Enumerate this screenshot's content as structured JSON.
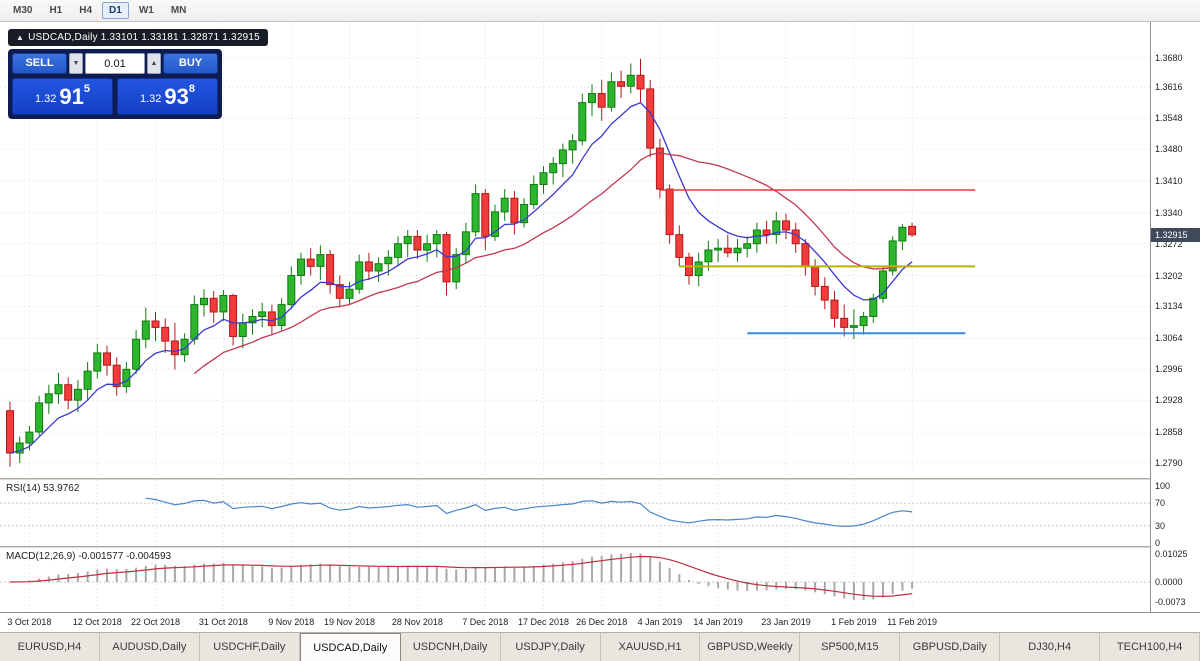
{
  "colors": {
    "up": "#2db52d",
    "up_stroke": "#0e7d0e",
    "down": "#f23b3b",
    "down_stroke": "#b21a1a",
    "ma_fast": "#3a3ad0",
    "ma_slow": "#c23850",
    "rsi_line": "#4a86c8",
    "macd_hist": "#a8a8a8",
    "macd_signal": "#c03040",
    "hline_red": "#e23b3b",
    "hline_yellow": "#b8b400",
    "hline_blue": "#3b8ae2",
    "grid": "#dcdcdc"
  },
  "toolbar": {
    "timeframes": [
      {
        "label": "M30",
        "active": false
      },
      {
        "label": "H1",
        "active": false
      },
      {
        "label": "H4",
        "active": false
      },
      {
        "label": "D1",
        "active": true
      },
      {
        "label": "W1",
        "active": false
      },
      {
        "label": "MN",
        "active": false
      }
    ]
  },
  "ohlc_label": {
    "arrow": "▲",
    "text": "USDCAD,Daily 1.33101 1.33181 1.32871 1.32915"
  },
  "trade_panel": {
    "sell_label": "SELL",
    "buy_label": "BUY",
    "lot_value": "0.01",
    "lot_down_icon": "▼",
    "lot_up_icon": "▲",
    "sell_price": {
      "prefix": "1.32",
      "big": "91",
      "sup": "5"
    },
    "buy_price": {
      "prefix": "1.32",
      "big": "93",
      "sup": "8"
    }
  },
  "price_axis": {
    "labels": [
      "1.3680",
      "1.3616",
      "1.3548",
      "1.3480",
      "1.3410",
      "1.3340",
      "1.3272",
      "1.3202",
      "1.3134",
      "1.3064",
      "1.2996",
      "1.2928",
      "1.2858",
      "1.2790"
    ],
    "current_price": "1.32915"
  },
  "rsi_panel": {
    "title": "RSI(14) 53.9762",
    "period": 14,
    "scale_labels": [
      {
        "text": "100",
        "value": 100
      },
      {
        "text": "70",
        "value": 70
      },
      {
        "text": "30",
        "value": 30
      },
      {
        "text": "0",
        "value": 0
      }
    ]
  },
  "macd_panel": {
    "title": "MACD(12,26,9) -0.001577 -0.004593",
    "fast": 12,
    "slow": 26,
    "signal": 9,
    "scale_labels": [
      {
        "text": "0.01025",
        "value": 0.01025
      },
      {
        "text": "0.0000",
        "value": 0
      },
      {
        "text": "-0.0073",
        "value": -0.0073
      }
    ]
  },
  "date_axis": {
    "ticks": [
      {
        "label": "3 Oct 2018",
        "i": 2
      },
      {
        "label": "12 Oct 2018",
        "i": 9
      },
      {
        "label": "22 Oct 2018",
        "i": 15
      },
      {
        "label": "31 Oct 2018",
        "i": 22
      },
      {
        "label": "9 Nov 2018",
        "i": 29
      },
      {
        "label": "19 Nov 2018",
        "i": 35
      },
      {
        "label": "28 Nov 2018",
        "i": 42
      },
      {
        "label": "7 Dec 2018",
        "i": 49
      },
      {
        "label": "17 Dec 2018",
        "i": 55
      },
      {
        "label": "26 Dec 2018",
        "i": 61
      },
      {
        "label": "4 Jan 2019",
        "i": 67
      },
      {
        "label": "14 Jan 2019",
        "i": 73
      },
      {
        "label": "23 Jan 2019",
        "i": 80
      },
      {
        "label": "1 Feb 2019",
        "i": 87
      },
      {
        "label": "11 Feb 2019",
        "i": 93
      }
    ]
  },
  "tabs": [
    {
      "label": "EURUSD,H4",
      "active": false
    },
    {
      "label": "AUDUSD,Daily",
      "active": false
    },
    {
      "label": "USDCHF,Daily",
      "active": false
    },
    {
      "label": "USDCAD,Daily",
      "active": true
    },
    {
      "label": "USDCNH,Daily",
      "active": false
    },
    {
      "label": "USDJPY,Daily",
      "active": false
    },
    {
      "label": "XAUUSD,H1",
      "active": false
    },
    {
      "label": "GBPUSD,Weekly",
      "active": false
    },
    {
      "label": "SP500,M15",
      "active": false
    },
    {
      "label": "GBPUSD,Daily",
      "active": false
    },
    {
      "label": "DJ30,H4",
      "active": false
    },
    {
      "label": "TECH100,H4",
      "active": false
    }
  ],
  "chart_data": {
    "type": "candlestick",
    "symbol": "USDCAD",
    "timeframe": "Daily",
    "current_price": 1.32915,
    "today_ohlc": {
      "open": 1.33101,
      "high": 1.33181,
      "low": 1.32871,
      "close": 1.32915
    },
    "y_axis": {
      "top": 1.368,
      "bottom": 1.279
    },
    "ma_fast": {
      "type": "ema",
      "period": 8
    },
    "ma_slow": {
      "type": "sma",
      "period": 20
    },
    "hlines": [
      {
        "price": 1.339,
        "color_key": "hline_red",
        "from_bar": 67,
        "to_bar": 99.5,
        "width": 1.6
      },
      {
        "price": 1.3222,
        "color_key": "hline_yellow",
        "from_bar": 69,
        "to_bar": 99.5,
        "width": 2
      },
      {
        "price": 1.3075,
        "color_key": "hline_blue",
        "from_bar": 76,
        "to_bar": 98.5,
        "width": 2
      }
    ],
    "ohlc": [
      [
        1.2905,
        1.2925,
        1.2782,
        1.2812
      ],
      [
        1.2812,
        1.2848,
        1.279,
        1.2834
      ],
      [
        1.2834,
        1.2872,
        1.2818,
        1.2858
      ],
      [
        1.2858,
        1.2938,
        1.285,
        1.2922
      ],
      [
        1.2922,
        1.2962,
        1.2898,
        1.2942
      ],
      [
        1.2942,
        1.2988,
        1.292,
        1.2962
      ],
      [
        1.2962,
        1.2978,
        1.2908,
        1.2928
      ],
      [
        1.2928,
        1.2972,
        1.2902,
        1.2952
      ],
      [
        1.2952,
        1.3012,
        1.293,
        1.2992
      ],
      [
        1.2992,
        1.3052,
        1.2976,
        1.3032
      ],
      [
        1.3032,
        1.3048,
        1.2982,
        1.3005
      ],
      [
        1.3005,
        1.3022,
        1.2938,
        1.2958
      ],
      [
        1.2958,
        1.3012,
        1.2944,
        1.2996
      ],
      [
        1.2996,
        1.3082,
        1.2986,
        1.3062
      ],
      [
        1.3062,
        1.3132,
        1.3042,
        1.3102
      ],
      [
        1.3102,
        1.3122,
        1.3058,
        1.3088
      ],
      [
        1.3088,
        1.3108,
        1.3032,
        1.3058
      ],
      [
        1.3058,
        1.3098,
        1.2995,
        1.3028
      ],
      [
        1.3028,
        1.3075,
        1.3012,
        1.3062
      ],
      [
        1.3062,
        1.3158,
        1.305,
        1.3138
      ],
      [
        1.3138,
        1.3172,
        1.3112,
        1.3152
      ],
      [
        1.3152,
        1.3168,
        1.3098,
        1.3122
      ],
      [
        1.3122,
        1.317,
        1.3102,
        1.3158
      ],
      [
        1.3158,
        1.3162,
        1.3048,
        1.3068
      ],
      [
        1.3068,
        1.3118,
        1.3042,
        1.3098
      ],
      [
        1.3098,
        1.3128,
        1.3072,
        1.3112
      ],
      [
        1.3112,
        1.3142,
        1.3088,
        1.3122
      ],
      [
        1.3122,
        1.3138,
        1.3072,
        1.3092
      ],
      [
        1.3092,
        1.3152,
        1.308,
        1.3138
      ],
      [
        1.3138,
        1.3222,
        1.3128,
        1.3202
      ],
      [
        1.3202,
        1.3252,
        1.3182,
        1.3238
      ],
      [
        1.3238,
        1.3262,
        1.3202,
        1.3222
      ],
      [
        1.3222,
        1.3268,
        1.3192,
        1.3248
      ],
      [
        1.3248,
        1.3258,
        1.3162,
        1.3182
      ],
      [
        1.3182,
        1.3202,
        1.3132,
        1.3152
      ],
      [
        1.3152,
        1.3188,
        1.3138,
        1.3172
      ],
      [
        1.3172,
        1.3248,
        1.3162,
        1.3232
      ],
      [
        1.3232,
        1.3252,
        1.3192,
        1.3212
      ],
      [
        1.3212,
        1.3242,
        1.3188,
        1.3228
      ],
      [
        1.3228,
        1.3258,
        1.3202,
        1.3242
      ],
      [
        1.3242,
        1.3288,
        1.3222,
        1.3272
      ],
      [
        1.3272,
        1.3302,
        1.3242,
        1.3288
      ],
      [
        1.3288,
        1.3302,
        1.3238,
        1.3258
      ],
      [
        1.3258,
        1.3292,
        1.3232,
        1.3272
      ],
      [
        1.3272,
        1.3302,
        1.3242,
        1.3292
      ],
      [
        1.3292,
        1.3298,
        1.3158,
        1.3188
      ],
      [
        1.3188,
        1.3262,
        1.3172,
        1.3248
      ],
      [
        1.3248,
        1.3318,
        1.3228,
        1.3298
      ],
      [
        1.3298,
        1.3402,
        1.3288,
        1.3382
      ],
      [
        1.3382,
        1.3392,
        1.3258,
        1.3288
      ],
      [
        1.3288,
        1.3358,
        1.3278,
        1.3342
      ],
      [
        1.3342,
        1.3392,
        1.3322,
        1.3372
      ],
      [
        1.3372,
        1.3388,
        1.3292,
        1.3318
      ],
      [
        1.3318,
        1.3372,
        1.3308,
        1.3358
      ],
      [
        1.3358,
        1.3422,
        1.3348,
        1.3402
      ],
      [
        1.3402,
        1.3442,
        1.3382,
        1.3428
      ],
      [
        1.3428,
        1.3462,
        1.3402,
        1.3448
      ],
      [
        1.3448,
        1.3492,
        1.3418,
        1.3478
      ],
      [
        1.3478,
        1.3512,
        1.3448,
        1.3498
      ],
      [
        1.3498,
        1.3602,
        1.3488,
        1.3582
      ],
      [
        1.3582,
        1.3622,
        1.3552,
        1.3602
      ],
      [
        1.3602,
        1.3632,
        1.3542,
        1.3572
      ],
      [
        1.3572,
        1.3648,
        1.3562,
        1.3628
      ],
      [
        1.3628,
        1.3652,
        1.3592,
        1.3618
      ],
      [
        1.3618,
        1.3668,
        1.3602,
        1.3642
      ],
      [
        1.3642,
        1.3678,
        1.3582,
        1.3612
      ],
      [
        1.3612,
        1.3632,
        1.3462,
        1.3482
      ],
      [
        1.3482,
        1.3502,
        1.3372,
        1.3392
      ],
      [
        1.3392,
        1.3402,
        1.3272,
        1.3292
      ],
      [
        1.3292,
        1.3312,
        1.3222,
        1.3242
      ],
      [
        1.3242,
        1.3252,
        1.3182,
        1.3202
      ],
      [
        1.3202,
        1.3252,
        1.3178,
        1.3232
      ],
      [
        1.3232,
        1.3278,
        1.3212,
        1.3258
      ],
      [
        1.3258,
        1.3282,
        1.3232,
        1.3262
      ],
      [
        1.3262,
        1.3292,
        1.3242,
        1.3252
      ],
      [
        1.3252,
        1.3282,
        1.3232,
        1.3262
      ],
      [
        1.3262,
        1.3288,
        1.3242,
        1.3272
      ],
      [
        1.3272,
        1.3318,
        1.3252,
        1.3302
      ],
      [
        1.3302,
        1.3322,
        1.3272,
        1.3292
      ],
      [
        1.3292,
        1.3342,
        1.3272,
        1.3322
      ],
      [
        1.3322,
        1.3338,
        1.3282,
        1.3302
      ],
      [
        1.3302,
        1.3318,
        1.3252,
        1.3272
      ],
      [
        1.3272,
        1.3282,
        1.3202,
        1.3222
      ],
      [
        1.3222,
        1.3238,
        1.3158,
        1.3178
      ],
      [
        1.3178,
        1.3198,
        1.3128,
        1.3148
      ],
      [
        1.3148,
        1.3168,
        1.3088,
        1.3108
      ],
      [
        1.3108,
        1.3138,
        1.3068,
        1.3088
      ],
      [
        1.3088,
        1.3128,
        1.3062,
        1.3092
      ],
      [
        1.3092,
        1.3122,
        1.3072,
        1.3112
      ],
      [
        1.3112,
        1.3162,
        1.3098,
        1.3152
      ],
      [
        1.3152,
        1.3222,
        1.3142,
        1.3212
      ],
      [
        1.3212,
        1.3288,
        1.3202,
        1.3278
      ],
      [
        1.3278,
        1.3315,
        1.3258,
        1.3308
      ],
      [
        1.33101,
        1.33181,
        1.32871,
        1.32915
      ]
    ]
  }
}
